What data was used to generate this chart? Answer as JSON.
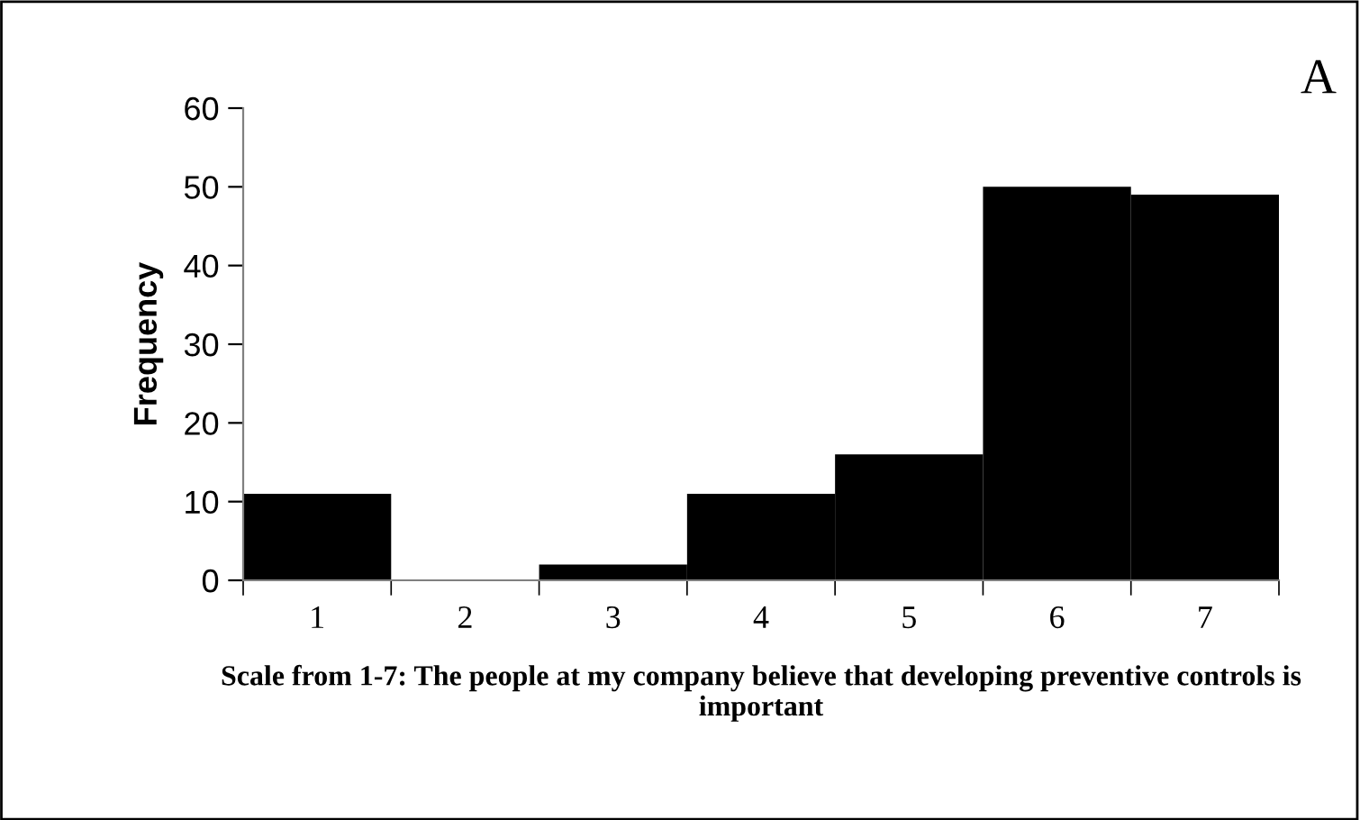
{
  "chart_data": {
    "type": "bar",
    "xlabel": "Scale from 1-7: The people at my company believe that developing preventive controls is important",
    "ylabel": "Frequency",
    "categories": [
      "1",
      "2",
      "3",
      "4",
      "5",
      "6",
      "7"
    ],
    "values": [
      11,
      0,
      2,
      11,
      16,
      50,
      49
    ],
    "color": "#000000",
    "ylim": [
      0,
      60
    ],
    "yticks": [
      0,
      10,
      20,
      30,
      40,
      50,
      60
    ],
    "grid": false,
    "legend": false,
    "annotations": [
      "A"
    ]
  }
}
